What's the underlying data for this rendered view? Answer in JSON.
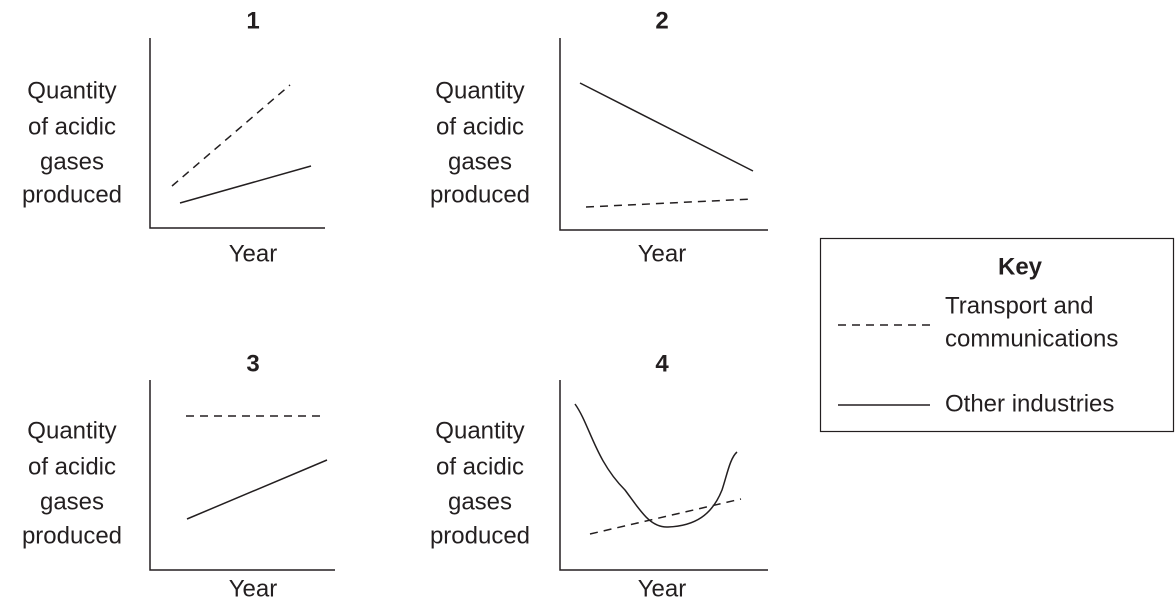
{
  "panels": [
    {
      "title": "1",
      "y_label": [
        "Quantity",
        "of acidic",
        "gases",
        "produced"
      ],
      "x_label": "Year"
    },
    {
      "title": "2",
      "y_label": [
        "Quantity",
        "of acidic",
        "gases",
        "produced"
      ],
      "x_label": "Year"
    },
    {
      "title": "3",
      "y_label": [
        "Quantity",
        "of acidic",
        "gases",
        "produced"
      ],
      "x_label": "Year"
    },
    {
      "title": "4",
      "y_label": [
        "Quantity",
        "of acidic",
        "gases",
        "produced"
      ],
      "x_label": "Year"
    }
  ],
  "key": {
    "title": "Key",
    "entries": [
      {
        "label": [
          "Transport and",
          "communications"
        ]
      },
      {
        "label": [
          "Other industries"
        ]
      }
    ]
  }
}
